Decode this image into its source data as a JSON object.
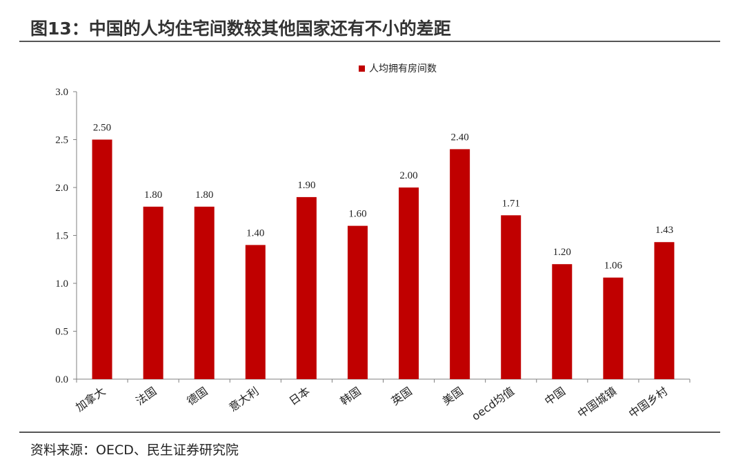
{
  "header": {
    "title": "图13：中国的人均住宅间数较其他国家还有不小的差距"
  },
  "footer": {
    "source": "资料来源：OECD、民生证券研究院"
  },
  "colors": {
    "bar": "#C00000",
    "axis": "#7f7f7f",
    "rule": "#555555"
  },
  "chart_data": {
    "type": "bar",
    "title": "",
    "xlabel": "",
    "ylabel": "",
    "ylim": [
      0,
      3.0
    ],
    "yticks": [
      "0.0",
      "0.5",
      "1.0",
      "1.5",
      "2.0",
      "2.5",
      "3.0"
    ],
    "grid": false,
    "legend_position": "top-center",
    "categories": [
      "加拿大",
      "法国",
      "德国",
      "意大利",
      "日本",
      "韩国",
      "英国",
      "美国",
      "oecd均值",
      "中国",
      "中国城镇",
      "中国乡村"
    ],
    "series": [
      {
        "name": "人均拥有房间数",
        "values": [
          2.5,
          1.8,
          1.8,
          1.4,
          1.9,
          1.6,
          2.0,
          2.4,
          1.71,
          1.2,
          1.06,
          1.43
        ],
        "labels": [
          "2.50",
          "1.80",
          "1.80",
          "1.40",
          "1.90",
          "1.60",
          "2.00",
          "2.40",
          "1.71",
          "1.20",
          "1.06",
          "1.43"
        ]
      }
    ]
  }
}
